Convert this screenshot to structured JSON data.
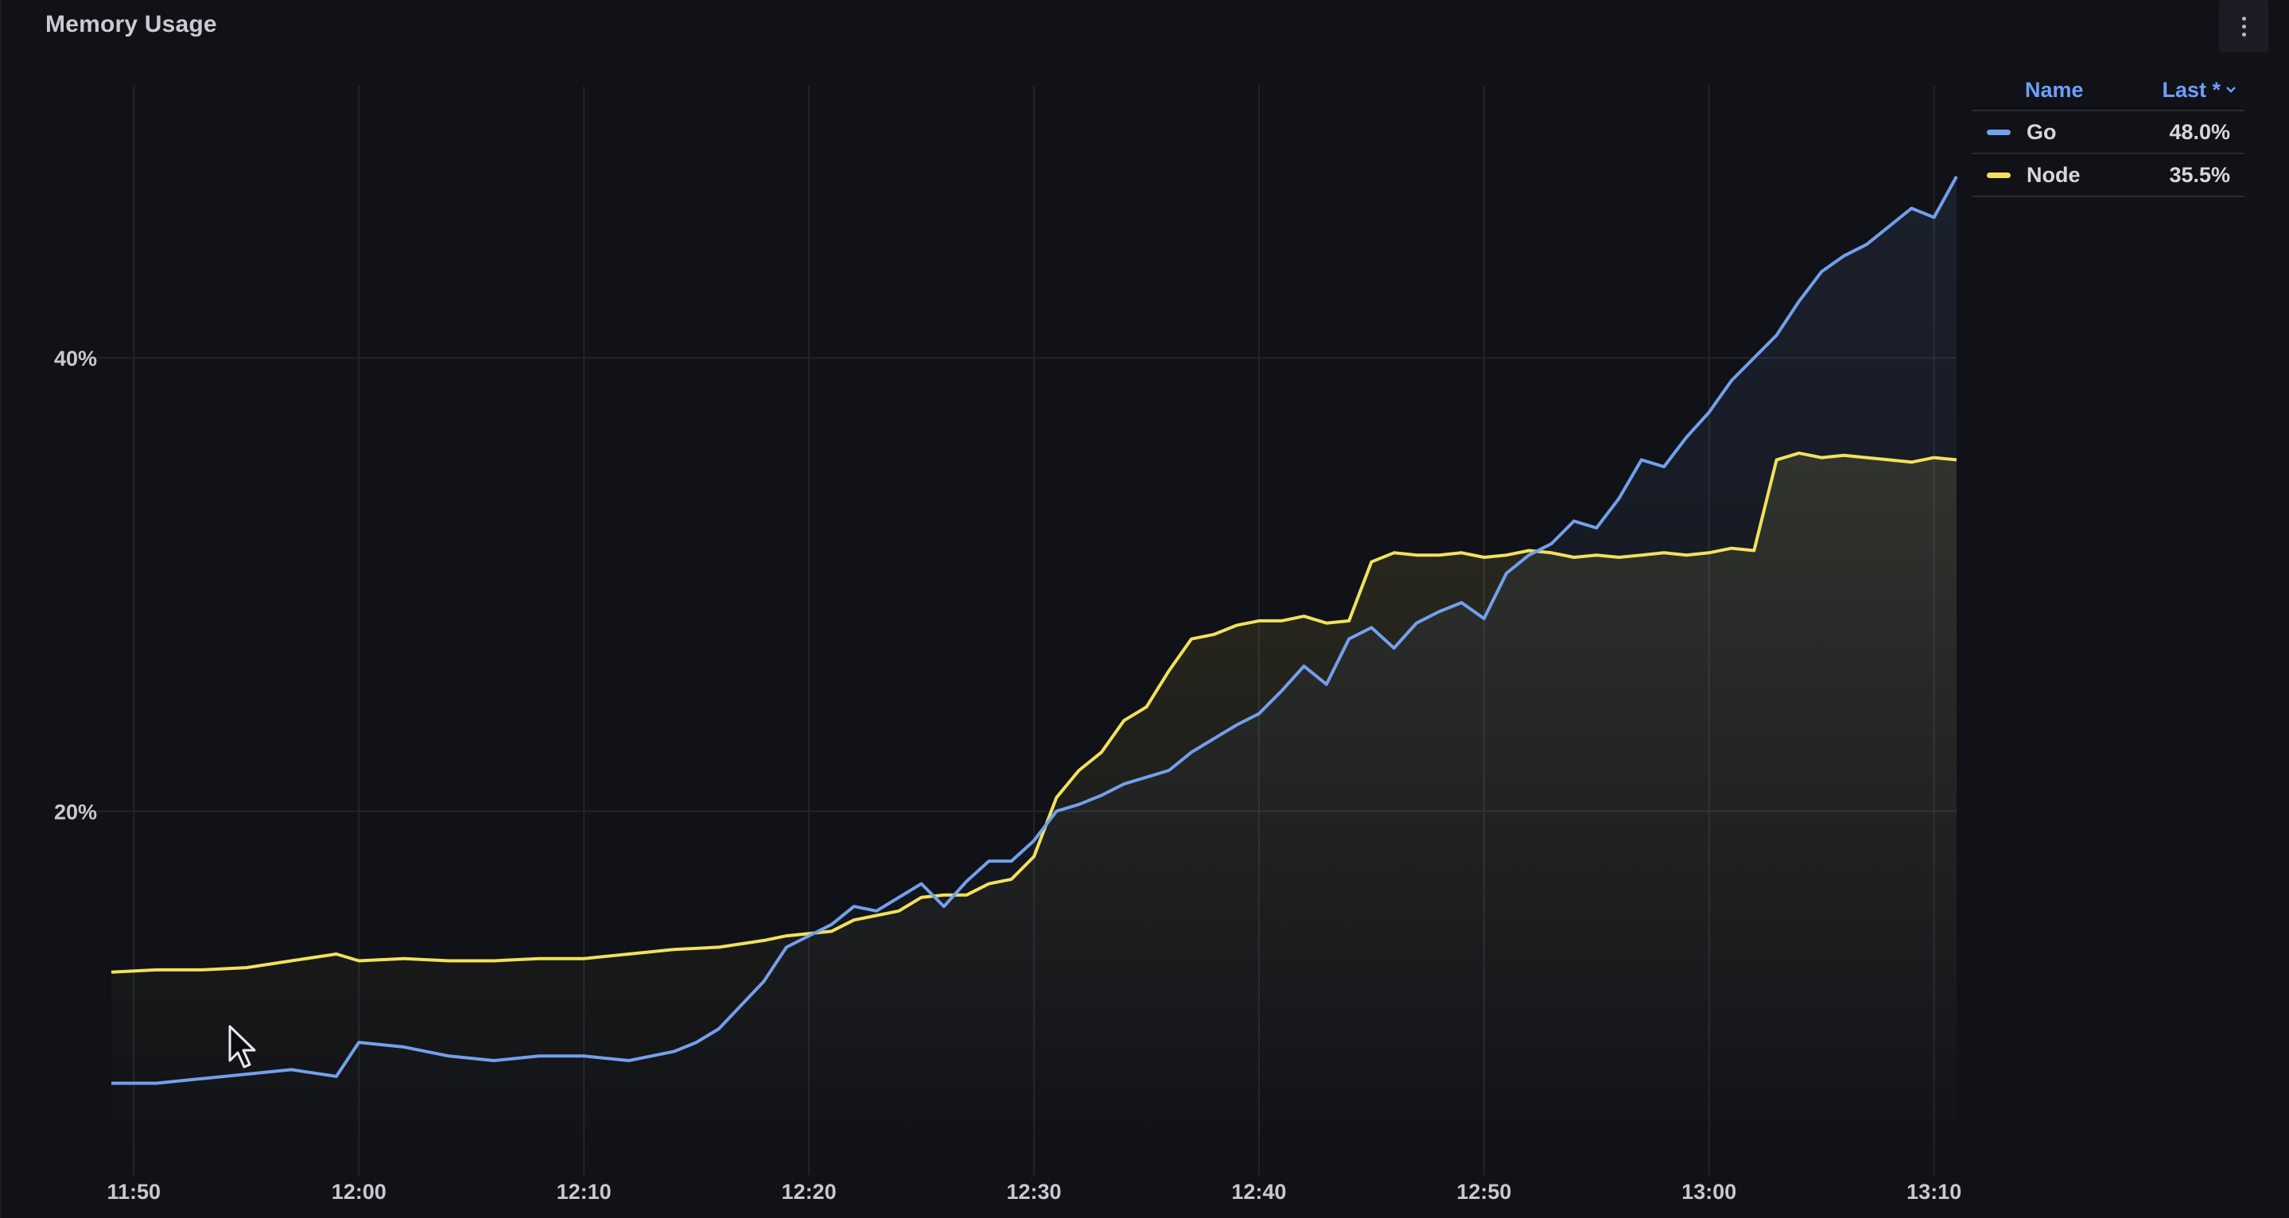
{
  "panel": {
    "title": "Memory Usage",
    "menu_icon": "vertical-ellipsis-icon"
  },
  "legend": {
    "name_header": "Name",
    "last_header": "Last *",
    "sort_icon": "chevron-down-icon",
    "items": [
      {
        "name": "Go",
        "last": "48.0%",
        "color": "#73a0ed"
      },
      {
        "name": "Node",
        "last": "35.5%",
        "color": "#f2e15c"
      }
    ]
  },
  "chart_data": {
    "type": "line",
    "title": "Memory Usage",
    "xlabel": "",
    "ylabel": "",
    "x_ticks": [
      "11:50",
      "12:00",
      "12:10",
      "12:20",
      "12:30",
      "12:40",
      "12:50",
      "13:00",
      "13:10"
    ],
    "y_ticks": [
      "20%",
      "40%"
    ],
    "xlim": [
      "11:49",
      "13:11"
    ],
    "ylim": [
      5,
      52
    ],
    "grid": true,
    "legend_position": "top-right",
    "fill_area": true,
    "series": [
      {
        "name": "Go",
        "color": "#73a0ed",
        "x": [
          "11:49",
          "11:51",
          "11:53",
          "11:55",
          "11:57",
          "11:59",
          "12:00",
          "12:02",
          "12:04",
          "12:06",
          "12:08",
          "12:10",
          "12:12",
          "12:14",
          "12:15",
          "12:16",
          "12:18",
          "12:19",
          "12:20",
          "12:21",
          "12:22",
          "12:23",
          "12:24",
          "12:25",
          "12:26",
          "12:27",
          "12:28",
          "12:29",
          "12:30",
          "12:31",
          "12:32",
          "12:33",
          "12:34",
          "12:35",
          "12:36",
          "12:37",
          "12:38",
          "12:39",
          "12:40",
          "12:41",
          "12:42",
          "12:43",
          "12:44",
          "12:45",
          "12:46",
          "12:47",
          "12:48",
          "12:49",
          "12:50",
          "12:51",
          "12:52",
          "12:53",
          "12:54",
          "12:55",
          "12:56",
          "12:57",
          "12:58",
          "12:59",
          "13:00",
          "13:01",
          "13:02",
          "13:03",
          "13:04",
          "13:05",
          "13:06",
          "13:07",
          "13:08",
          "13:09",
          "13:10",
          "13:11"
        ],
        "y": [
          8.0,
          8.0,
          8.2,
          8.4,
          8.6,
          8.3,
          9.8,
          9.6,
          9.2,
          9.0,
          9.2,
          9.2,
          9.0,
          9.4,
          9.8,
          10.4,
          12.5,
          14.0,
          14.5,
          15.0,
          15.8,
          15.6,
          16.2,
          16.8,
          15.8,
          16.9,
          17.8,
          17.8,
          18.7,
          20.0,
          20.3,
          20.7,
          21.2,
          21.5,
          21.8,
          22.6,
          23.2,
          23.8,
          24.3,
          25.3,
          26.4,
          25.6,
          27.6,
          28.1,
          27.2,
          28.3,
          28.8,
          29.2,
          28.5,
          30.5,
          31.3,
          31.8,
          32.8,
          32.5,
          33.8,
          35.5,
          35.2,
          36.5,
          37.6,
          39.0,
          40.0,
          41.0,
          42.5,
          43.8,
          44.5,
          45.0,
          45.8,
          46.6,
          46.2,
          48.0
        ]
      },
      {
        "name": "Node",
        "color": "#f2e15c",
        "x": [
          "11:49",
          "11:51",
          "11:53",
          "11:55",
          "11:57",
          "11:59",
          "12:00",
          "12:02",
          "12:04",
          "12:06",
          "12:08",
          "12:10",
          "12:12",
          "12:14",
          "12:16",
          "12:18",
          "12:19",
          "12:20",
          "12:21",
          "12:22",
          "12:23",
          "12:24",
          "12:25",
          "12:26",
          "12:27",
          "12:28",
          "12:29",
          "12:30",
          "12:31",
          "12:32",
          "12:33",
          "12:34",
          "12:35",
          "12:36",
          "12:37",
          "12:38",
          "12:39",
          "12:40",
          "12:41",
          "12:42",
          "12:43",
          "12:44",
          "12:45",
          "12:46",
          "12:47",
          "12:48",
          "12:49",
          "12:50",
          "12:51",
          "12:52",
          "12:53",
          "12:54",
          "12:55",
          "12:56",
          "12:57",
          "12:58",
          "12:59",
          "13:00",
          "13:01",
          "13:02",
          "13:03",
          "13:04",
          "13:05",
          "13:06",
          "13:07",
          "13:08",
          "13:09",
          "13:10",
          "13:11"
        ],
        "y": [
          12.9,
          13.0,
          13.0,
          13.1,
          13.4,
          13.7,
          13.4,
          13.5,
          13.4,
          13.4,
          13.5,
          13.5,
          13.7,
          13.9,
          14.0,
          14.3,
          14.5,
          14.6,
          14.7,
          15.2,
          15.4,
          15.6,
          16.2,
          16.3,
          16.3,
          16.8,
          17.0,
          18.0,
          20.6,
          21.8,
          22.6,
          24.0,
          24.6,
          26.2,
          27.6,
          27.8,
          28.2,
          28.4,
          28.4,
          28.6,
          28.3,
          28.4,
          31.0,
          31.4,
          31.3,
          31.3,
          31.4,
          31.2,
          31.3,
          31.5,
          31.4,
          31.2,
          31.3,
          31.2,
          31.3,
          31.4,
          31.3,
          31.4,
          31.6,
          31.5,
          35.5,
          35.8,
          35.6,
          35.7,
          35.6,
          35.5,
          35.4,
          35.6,
          35.5
        ]
      }
    ]
  }
}
